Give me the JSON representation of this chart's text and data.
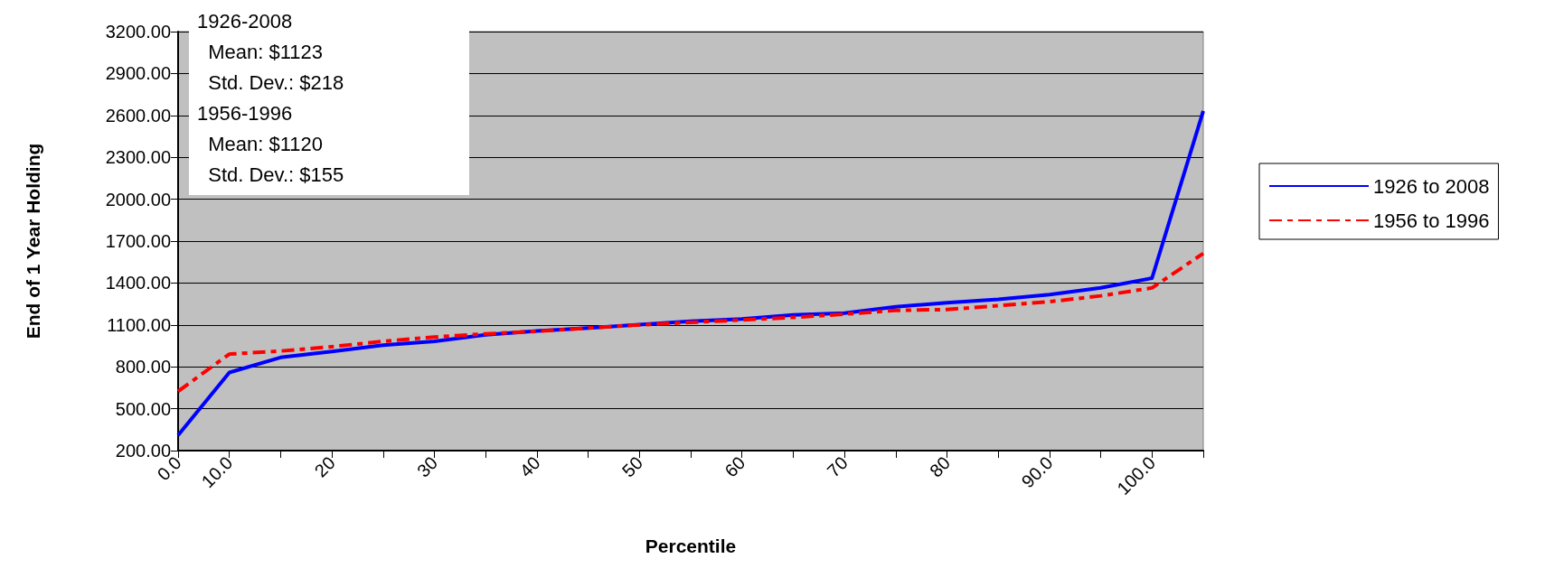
{
  "chart_data": {
    "type": "line",
    "xlabel": "Percentile",
    "ylabel": "End of 1 Year Holding",
    "categories": [
      "0.0",
      "10.0",
      null,
      "20",
      null,
      "30",
      null,
      "40",
      null,
      "50",
      null,
      "60",
      null,
      "70",
      null,
      "80",
      null,
      "90.0",
      null,
      "100.0",
      null
    ],
    "series": [
      {
        "name": "1926 to 2008",
        "color": "#0000ff",
        "line_style": "solid",
        "values": [
          310,
          759,
          867,
          909,
          955,
          982,
          1029,
          1057,
          1077,
          1102,
          1126,
          1143,
          1171,
          1185,
          1230,
          1258,
          1283,
          1317,
          1365,
          1435,
          2632
        ]
      },
      {
        "name": "1956 to 1996",
        "color": "#ff0000",
        "line_style": "dashed",
        "values": [
          625,
          891,
          913,
          944,
          982,
          1013,
          1036,
          1054,
          1077,
          1100,
          1118,
          1135,
          1154,
          1177,
          1204,
          1210,
          1238,
          1266,
          1308,
          1365,
          1612
        ]
      }
    ],
    "ylim": [
      200,
      3200
    ],
    "yticks": [
      {
        "value": 200,
        "label": "200.00"
      },
      {
        "value": 500,
        "label": "500.00"
      },
      {
        "value": 800,
        "label": "800.00"
      },
      {
        "value": 1100,
        "label": "1100.00"
      },
      {
        "value": 1400,
        "label": "1400.00"
      },
      {
        "value": 1700,
        "label": "1700.00"
      },
      {
        "value": 2000,
        "label": "2000.00"
      },
      {
        "value": 2300,
        "label": "2300.00"
      },
      {
        "value": 2600,
        "label": "2600.00"
      },
      {
        "value": 2900,
        "label": "2900.00"
      },
      {
        "value": 3200,
        "label": "3200.00"
      }
    ],
    "grid": "y",
    "legend": "right",
    "marker": "none",
    "annotations": [
      "1926-2008",
      "  Mean: $1123",
      "  Std. Dev.: $218",
      "1956-1996",
      "  Mean: $1120",
      "  Std. Dev.: $155"
    ]
  }
}
